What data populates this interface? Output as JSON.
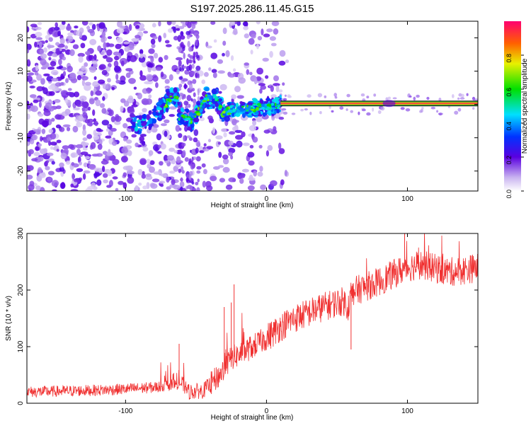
{
  "title": "S197.2025.286.11.45.G15",
  "chart_data": [
    {
      "type": "heatmap",
      "xlabel": "Height of straight line (km)",
      "ylabel": "Frequency (Hz)",
      "xlim": [
        -170,
        150
      ],
      "ylim": [
        -26,
        25
      ],
      "x_ticks": [
        -100,
        0,
        100
      ],
      "y_ticks": [
        -20,
        -10,
        0,
        10,
        20
      ],
      "colorbar": {
        "label": "Normalized spectral amplitude",
        "range": [
          0,
          1
        ],
        "ticks": [
          0.0,
          0.2,
          0.4,
          0.6,
          0.8
        ],
        "tick_labels": [
          "0.0",
          "0.2",
          "0.4",
          "0.6",
          "0.8"
        ],
        "stops": [
          {
            "v": 0.0,
            "c": "#ffffff"
          },
          {
            "v": 0.08,
            "c": "#c9b3f0"
          },
          {
            "v": 0.2,
            "c": "#5a00e0"
          },
          {
            "v": 0.32,
            "c": "#0033ff"
          },
          {
            "v": 0.45,
            "c": "#00e0ff"
          },
          {
            "v": 0.6,
            "c": "#00e000"
          },
          {
            "v": 0.75,
            "c": "#e8f000"
          },
          {
            "v": 0.87,
            "c": "#ff6000"
          },
          {
            "v": 1.0,
            "c": "#ff0070"
          }
        ]
      },
      "line_x_range": [
        10,
        150
      ],
      "line_freq": 0.3,
      "line_color": "#2a9a2a",
      "line_core_color": "#f04040"
    },
    {
      "type": "line",
      "xlabel": "Height of straight line (km)",
      "ylabel": "SNR (10 * v/v)",
      "xlim": [
        -170,
        150
      ],
      "ylim": [
        0,
        300
      ],
      "x_ticks": [
        -100,
        0,
        100
      ],
      "y_ticks": [
        0,
        100,
        200,
        300
      ],
      "color": "#f03030",
      "series": [
        {
          "x": [
            -170,
            -150,
            -120,
            -100,
            -80,
            -60,
            -55,
            -45,
            -35,
            -30,
            -25,
            -20,
            -10,
            0,
            10,
            20,
            30,
            40,
            50,
            55,
            58,
            60,
            62,
            70,
            80,
            90,
            100,
            110,
            120,
            130,
            140,
            150
          ],
          "values": [
            20,
            21,
            23,
            25,
            28,
            35,
            20,
            22,
            45,
            60,
            80,
            85,
            100,
            115,
            135,
            150,
            160,
            170,
            178,
            180,
            170,
            195,
            198,
            205,
            215,
            228,
            240,
            245,
            238,
            232,
            235,
            240
          ]
        }
      ],
      "spikes": [
        {
          "x": -23,
          "value": 210
        },
        {
          "x": -25,
          "value": 178
        },
        {
          "x": -30,
          "value": 170
        },
        {
          "x": -62,
          "value": 105
        },
        {
          "x": 60,
          "value": 95
        },
        {
          "x": 98,
          "value": 300
        }
      ]
    }
  ]
}
